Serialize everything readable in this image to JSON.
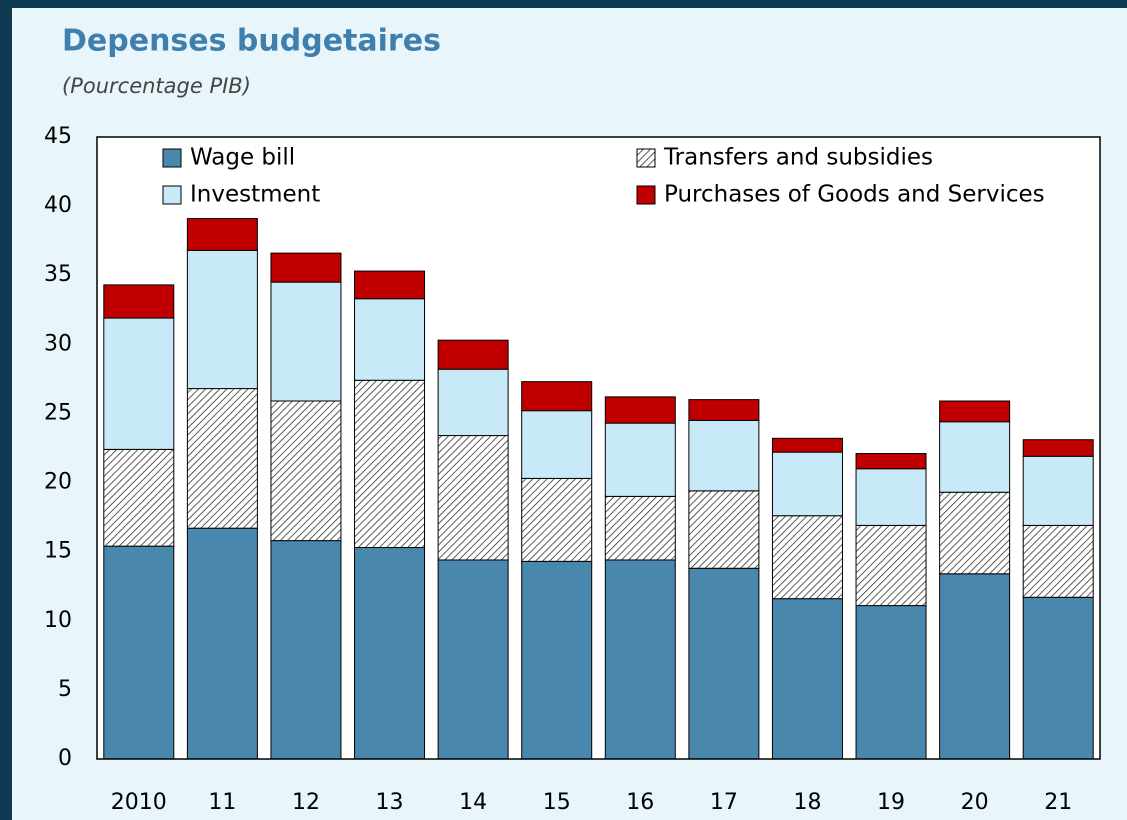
{
  "chart_data": {
    "type": "stacked_bar",
    "title": "Depenses budgetaires",
    "subtitle": "(Pourcentage PIB)",
    "categories": [
      "2010",
      "11",
      "12",
      "13",
      "14",
      "15",
      "16",
      "17",
      "18",
      "19",
      "20",
      "21"
    ],
    "series": [
      {
        "name": "Wage bill",
        "color": "#4a87ad",
        "values": [
          15.4,
          16.7,
          15.8,
          15.3,
          14.4,
          14.3,
          14.4,
          13.8,
          11.6,
          11.1,
          13.4,
          11.7
        ]
      },
      {
        "name": "Transfers and subsidies",
        "color": "#ffffff",
        "hatch": true,
        "values": [
          7.0,
          10.1,
          10.1,
          12.1,
          9.0,
          6.0,
          4.6,
          5.6,
          6.0,
          5.8,
          5.9,
          5.2
        ]
      },
      {
        "name": "Investment",
        "color": "#c8e9f8",
        "values": [
          9.5,
          10.0,
          8.6,
          5.9,
          4.8,
          4.9,
          5.3,
          5.1,
          4.6,
          4.1,
          5.1,
          5.0
        ]
      },
      {
        "name": "Purchases of Goods and Services",
        "color": "#c00000",
        "values": [
          2.4,
          2.3,
          2.1,
          2.0,
          2.1,
          2.1,
          1.9,
          1.5,
          1.0,
          1.1,
          1.5,
          1.2
        ]
      }
    ],
    "ylim": [
      0,
      45
    ],
    "yticks": [
      0,
      5,
      10,
      15,
      20,
      25,
      30,
      35,
      40,
      45
    ],
    "grid": false
  }
}
